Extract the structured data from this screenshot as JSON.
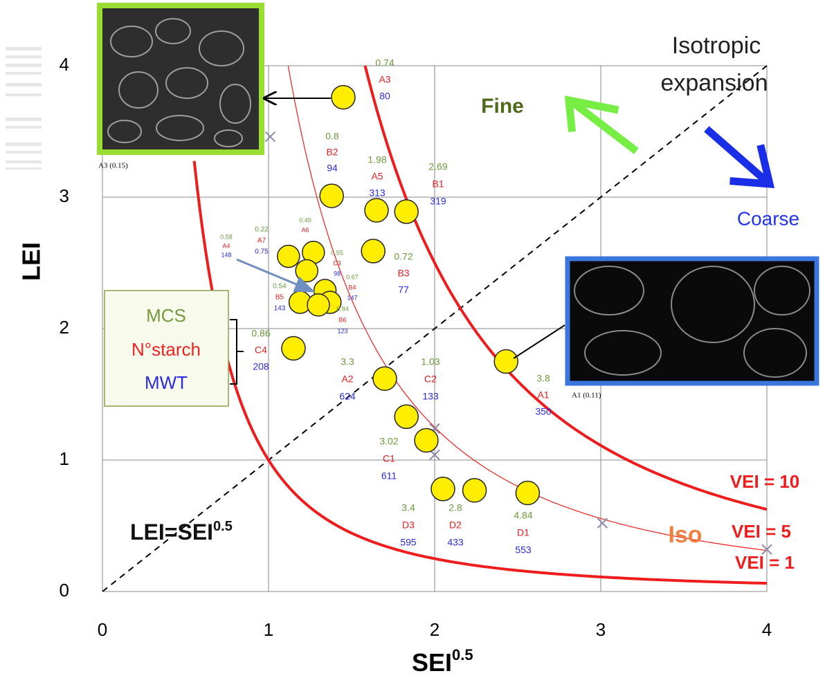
{
  "chart_data": {
    "type": "scatter",
    "x_label": "SEI",
    "x_label_sup": "0.5",
    "y_label": "LEI",
    "xlim": [
      0,
      4
    ],
    "ylim": [
      0,
      4
    ],
    "xticks": [
      0,
      1,
      2,
      3,
      4
    ],
    "yticks": [
      0,
      1,
      2,
      3,
      4
    ],
    "grid": true,
    "point_color": "#ffee00",
    "points": {
      "names": [
        "A3",
        "B2",
        "A5",
        "B1",
        "B3",
        "C4",
        "A2",
        "C2",
        "C1",
        "D3",
        "D2",
        "D1",
        "A1",
        "A4",
        "A7",
        "A6",
        "C3",
        "B4",
        "B5",
        "B6"
      ],
      "x": [
        1.45,
        1.38,
        1.65,
        1.83,
        1.63,
        1.15,
        1.7,
        1.83,
        1.95,
        2.05,
        2.24,
        2.56,
        2.43,
        1.12,
        1.27,
        1.23,
        1.34,
        1.37,
        1.19,
        1.3
      ],
      "y": [
        3.76,
        3.01,
        2.9,
        2.89,
        2.59,
        1.85,
        1.62,
        1.33,
        1.15,
        0.78,
        0.77,
        0.75,
        1.75,
        2.55,
        2.58,
        2.44,
        2.29,
        2.2,
        2.2,
        2.18
      ],
      "mcs": [
        "0.74",
        "0.8",
        "1.98",
        "2.69",
        "0.72",
        "0.86",
        "3.3",
        "1.03",
        "3.02",
        "3.4",
        "2.8",
        "4.84",
        "3.8",
        "0.58",
        "0.22",
        "0.49",
        "0.55",
        "0.67",
        "0.54",
        "0.84"
      ],
      "mwt": [
        "80",
        "94",
        "313",
        "319",
        "77",
        "208",
        "624",
        "133",
        "611",
        "595",
        "433",
        "553",
        "350",
        "148",
        "0.75",
        null,
        "98",
        "147",
        "143",
        "123"
      ]
    },
    "crosses": {
      "color": "#8a8aa8",
      "x": [
        1.01,
        2.0,
        2.0,
        3.01,
        4.0
      ],
      "y": [
        3.46,
        1.24,
        1.04,
        0.52,
        0.32
      ]
    },
    "curves": [
      {
        "name": "VEI = 10",
        "vei": 10,
        "color": "#ee1c1c",
        "width": 4
      },
      {
        "name": "VEI = 5",
        "vei": 5,
        "color": "#ee1c1c",
        "width": 1.2
      },
      {
        "name": "VEI = 1",
        "vei": 1,
        "color": "#ee1c1c",
        "width": 4
      }
    ],
    "diagonal_label": "LEI=SEI",
    "diagonal_label_sup": "0.5",
    "annotations": {
      "isotropic": "Isotropic",
      "expansion": "expansion",
      "fine": "Fine",
      "coarse": "Coarse",
      "iso": "Iso"
    },
    "legend_box": [
      "MCS",
      "N°starch",
      "MWT"
    ],
    "image_captions": [
      "A3 (0.15)",
      "A1 (0.11)"
    ]
  }
}
